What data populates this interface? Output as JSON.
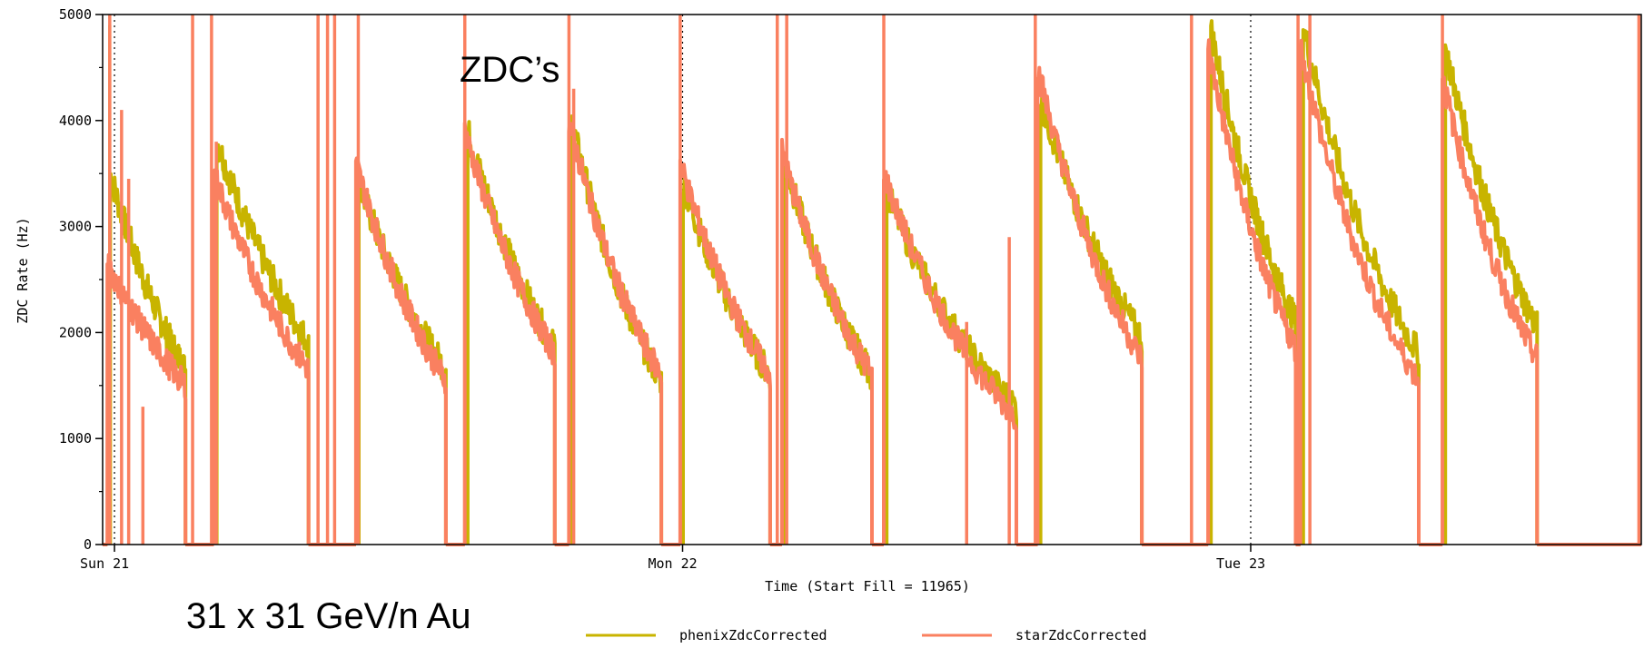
{
  "chart_data": {
    "type": "line",
    "title": "",
    "xlabel": "Time (Start Fill = 11965)",
    "ylabel": "ZDC Rate (Hz)",
    "xlim": [
      -0.5,
      64.5
    ],
    "ylim": [
      0,
      5000
    ],
    "x_unit": "hours since Sun 21 00:00",
    "y_ticks": [
      0,
      1000,
      2000,
      3000,
      4000,
      5000
    ],
    "x_ticks": [
      {
        "x": 0,
        "label": "Sun 21"
      },
      {
        "x": 24,
        "label": "Mon 22"
      },
      {
        "x": 48,
        "label": "Tue 23"
      }
    ],
    "grid": "vertical dotted lines at day boundaries",
    "legend_position": "bottom-center",
    "annotations": [
      "ZDC’s",
      "31 x 31 GeV/n Au"
    ],
    "series": [
      {
        "name": "phenixZdcCorrected",
        "color": "#c8b400",
        "fills": [
          {
            "start": -0.3,
            "end": 3.0,
            "peak": 3600,
            "final": 1650,
            "spikes": [
              [
                -0.2,
                4900
              ]
            ]
          },
          {
            "start": 4.2,
            "end": 8.2,
            "peak": 3900,
            "final": 1900,
            "spikes": []
          },
          {
            "start": 10.2,
            "end": 14.0,
            "peak": 3500,
            "final": 1650,
            "spikes": []
          },
          {
            "start": 14.8,
            "end": 18.6,
            "peak": 4000,
            "final": 1850,
            "spikes": []
          },
          {
            "start": 19.2,
            "end": 23.1,
            "peak": 4100,
            "final": 1550,
            "spikes": []
          },
          {
            "start": 23.9,
            "end": 27.7,
            "peak": 3500,
            "final": 1600,
            "spikes": []
          },
          {
            "start": 28.2,
            "end": 32.0,
            "peak": 3700,
            "final": 1600,
            "spikes": []
          },
          {
            "start": 32.5,
            "end": 38.1,
            "peak": 3400,
            "final": 1300,
            "spikes": []
          },
          {
            "start": 39.0,
            "end": 43.4,
            "peak": 4300,
            "final": 1950,
            "spikes": []
          },
          {
            "start": 46.2,
            "end": 49.9,
            "peak": 5000,
            "final": 2100,
            "spikes": []
          },
          {
            "start": 50.1,
            "end": 55.1,
            "peak": 5000,
            "final": 1800,
            "spikes": []
          },
          {
            "start": 56.1,
            "end": 60.1,
            "peak": 4800,
            "final": 2050,
            "spikes": []
          }
        ]
      },
      {
        "name": "starZdcCorrected",
        "color": "#fa8060",
        "fills": [
          {
            "start": -0.3,
            "end": 3.0,
            "peak": 2650,
            "final": 1500,
            "spikes": [
              [
                -0.2,
                5000
              ],
              [
                0.3,
                4100
              ],
              [
                0.6,
                3450
              ],
              [
                1.2,
                1300
              ]
            ]
          },
          {
            "start": 4.2,
            "end": 8.2,
            "peak": 3500,
            "final": 1650,
            "spikes": [
              [
                3.3,
                5000
              ],
              [
                4.1,
                5000
              ],
              [
                4.3,
                3800
              ]
            ]
          },
          {
            "start": 10.2,
            "end": 14.0,
            "peak": 3600,
            "final": 1550,
            "spikes": [
              [
                8.6,
                5000
              ],
              [
                9.0,
                5000
              ],
              [
                9.3,
                5000
              ],
              [
                10.3,
                5000
              ]
            ]
          },
          {
            "start": 14.8,
            "end": 18.6,
            "peak": 3900,
            "final": 1800,
            "spikes": [
              [
                14.8,
                5000
              ]
            ]
          },
          {
            "start": 19.2,
            "end": 23.1,
            "peak": 4000,
            "final": 1600,
            "spikes": [
              [
                19.2,
                5000
              ],
              [
                19.4,
                4300
              ]
            ]
          },
          {
            "start": 23.9,
            "end": 27.7,
            "peak": 3600,
            "final": 1600,
            "spikes": [
              [
                23.9,
                5000
              ]
            ]
          },
          {
            "start": 28.2,
            "end": 32.0,
            "peak": 3700,
            "final": 1600,
            "spikes": [
              [
                28.0,
                5000
              ],
              [
                28.4,
                5000
              ]
            ]
          },
          {
            "start": 32.5,
            "end": 38.1,
            "peak": 3500,
            "final": 1200,
            "spikes": [
              [
                32.5,
                5000
              ],
              [
                37.8,
                2900
              ],
              [
                36.0,
                2100
              ]
            ]
          },
          {
            "start": 39.0,
            "end": 43.4,
            "peak": 4500,
            "final": 1750,
            "spikes": [
              [
                38.9,
                5000
              ]
            ]
          },
          {
            "start": 46.2,
            "end": 49.9,
            "peak": 4700,
            "final": 1850,
            "spikes": [
              [
                45.5,
                5000
              ],
              [
                50.0,
                5000
              ]
            ]
          },
          {
            "start": 50.1,
            "end": 55.1,
            "peak": 4700,
            "final": 1550,
            "spikes": [
              [
                50.5,
                5000
              ]
            ]
          },
          {
            "start": 56.1,
            "end": 60.1,
            "peak": 4400,
            "final": 1750,
            "spikes": [
              [
                56.1,
                5000
              ],
              [
                64.4,
                5000
              ]
            ]
          }
        ]
      }
    ]
  }
}
